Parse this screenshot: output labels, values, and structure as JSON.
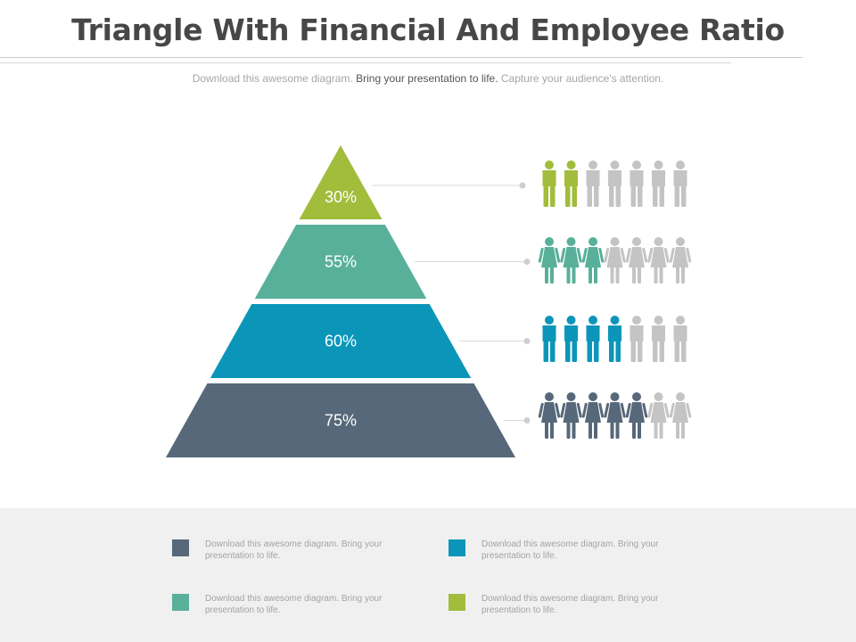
{
  "header": {
    "title": "Triangle With Financial And Employee Ratio",
    "subtitle_left": "Download this awesome diagram.",
    "subtitle_mid": "Bring your presentation to life.",
    "subtitle_right": "Capture your audience's attention."
  },
  "levels": [
    {
      "label": "30%",
      "value": 30,
      "color": "#a2bc3c",
      "filled_people": 2,
      "total_people": 7,
      "figure": "male"
    },
    {
      "label": "55%",
      "value": 55,
      "color": "#58b09a",
      "filled_people": 3,
      "total_people": 7,
      "figure": "female"
    },
    {
      "label": "60%",
      "value": 60,
      "color": "#0b96b9",
      "filled_people": 4,
      "total_people": 7,
      "figure": "male"
    },
    {
      "label": "75%",
      "value": 75,
      "color": "#566879",
      "filled_people": 5,
      "total_people": 7,
      "figure": "female"
    }
  ],
  "colors": {
    "inactive_person": "#c4c4c4",
    "connector": "#d9d9d9",
    "footer_bg": "#f0f0f0"
  },
  "legend": [
    {
      "color": "#566879",
      "text": "Download this awesome diagram. Bring your presentation to life."
    },
    {
      "color": "#0b96b9",
      "text": "Download this awesome diagram. Bring your presentation to life."
    },
    {
      "color": "#58b09a",
      "text": "Download this awesome diagram. Bring your presentation to life."
    },
    {
      "color": "#a2bc3c",
      "text": "Download this awesome diagram. Bring your presentation to life."
    }
  ]
}
